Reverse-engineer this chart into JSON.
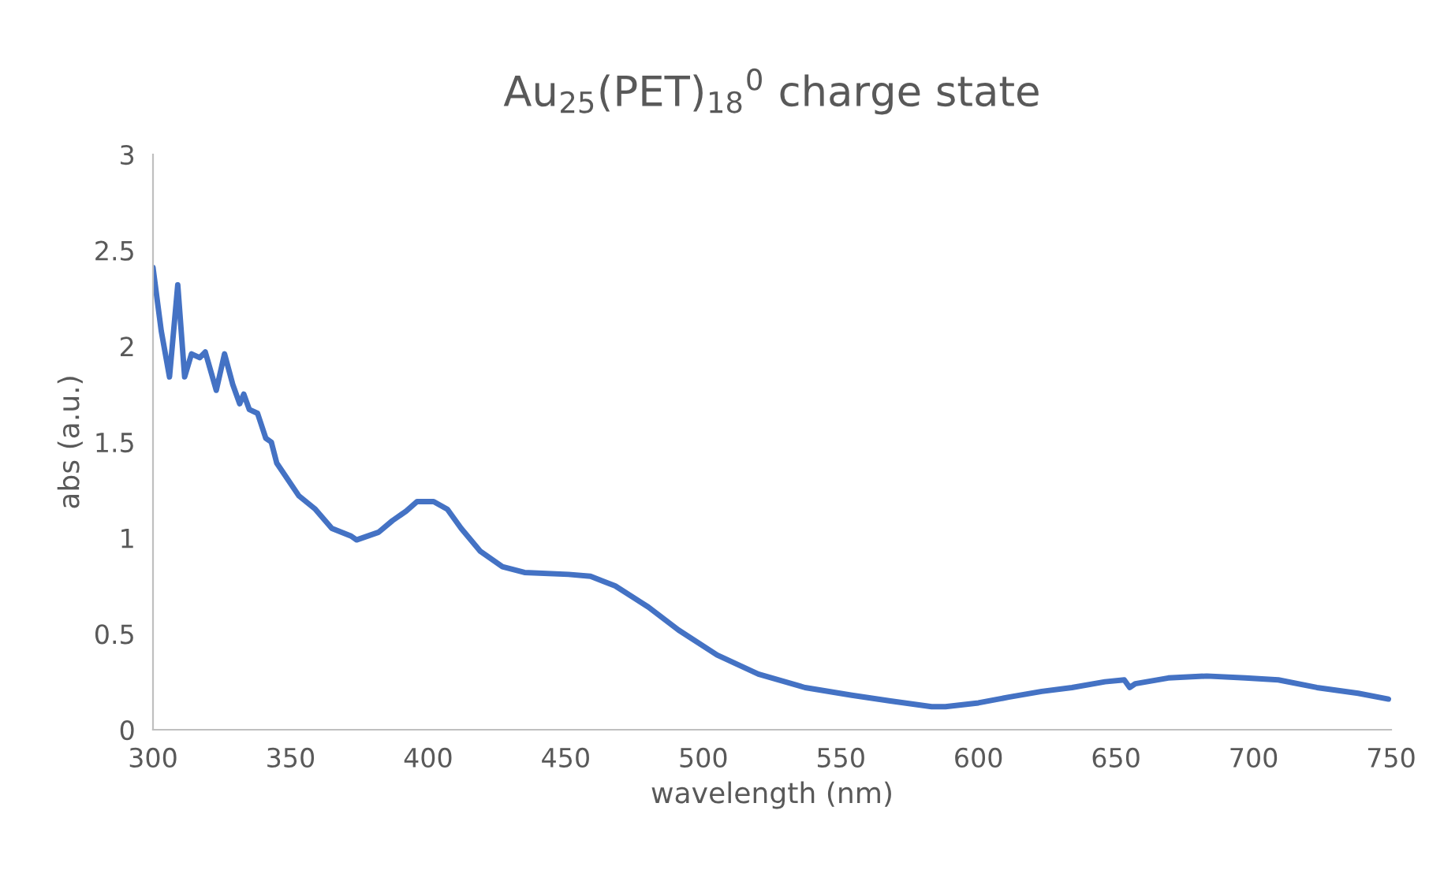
{
  "chart_data": {
    "type": "line",
    "title": "Au$_{25}$(PET)$_{18}$$^{0}$ charge state",
    "xlabel": "wavelength (nm)",
    "ylabel": "abs (a.u.)",
    "xlim": [
      300,
      750
    ],
    "xticks": [
      300,
      350,
      400,
      450,
      500,
      550,
      600,
      650,
      700,
      750
    ],
    "ylim": [
      0,
      3
    ],
    "yticks": [
      0,
      0.5,
      1,
      1.5,
      2,
      2.5,
      3
    ],
    "grid": false,
    "legend": false,
    "series": [
      {
        "color": "#4472c4",
        "x": [
          300,
          303,
          306,
          309,
          311.5,
          314,
          317,
          319,
          323,
          326,
          329,
          331.5,
          333,
          335,
          338,
          341,
          343,
          345,
          353,
          359,
          365,
          372,
          374,
          382,
          387,
          392,
          396,
          402,
          407,
          412,
          419,
          427,
          435,
          451,
          459,
          468,
          480,
          491,
          505,
          520,
          537,
          554,
          568,
          583,
          588,
          600,
          611,
          623,
          634,
          646,
          653,
          655,
          657,
          669,
          683,
          697,
          709,
          723,
          738,
          749
        ],
        "values": [
          2.41,
          2.08,
          1.84,
          2.32,
          1.84,
          1.96,
          1.94,
          1.97,
          1.77,
          1.96,
          1.8,
          1.7,
          1.75,
          1.67,
          1.65,
          1.52,
          1.5,
          1.39,
          1.22,
          1.15,
          1.05,
          1.01,
          0.99,
          1.03,
          1.09,
          1.14,
          1.19,
          1.19,
          1.15,
          1.05,
          0.93,
          0.85,
          0.82,
          0.81,
          0.8,
          0.75,
          0.64,
          0.52,
          0.39,
          0.29,
          0.22,
          0.18,
          0.15,
          0.12,
          0.12,
          0.14,
          0.17,
          0.2,
          0.22,
          0.25,
          0.26,
          0.22,
          0.24,
          0.27,
          0.28,
          0.27,
          0.26,
          0.22,
          0.19,
          0.16
        ]
      }
    ]
  }
}
